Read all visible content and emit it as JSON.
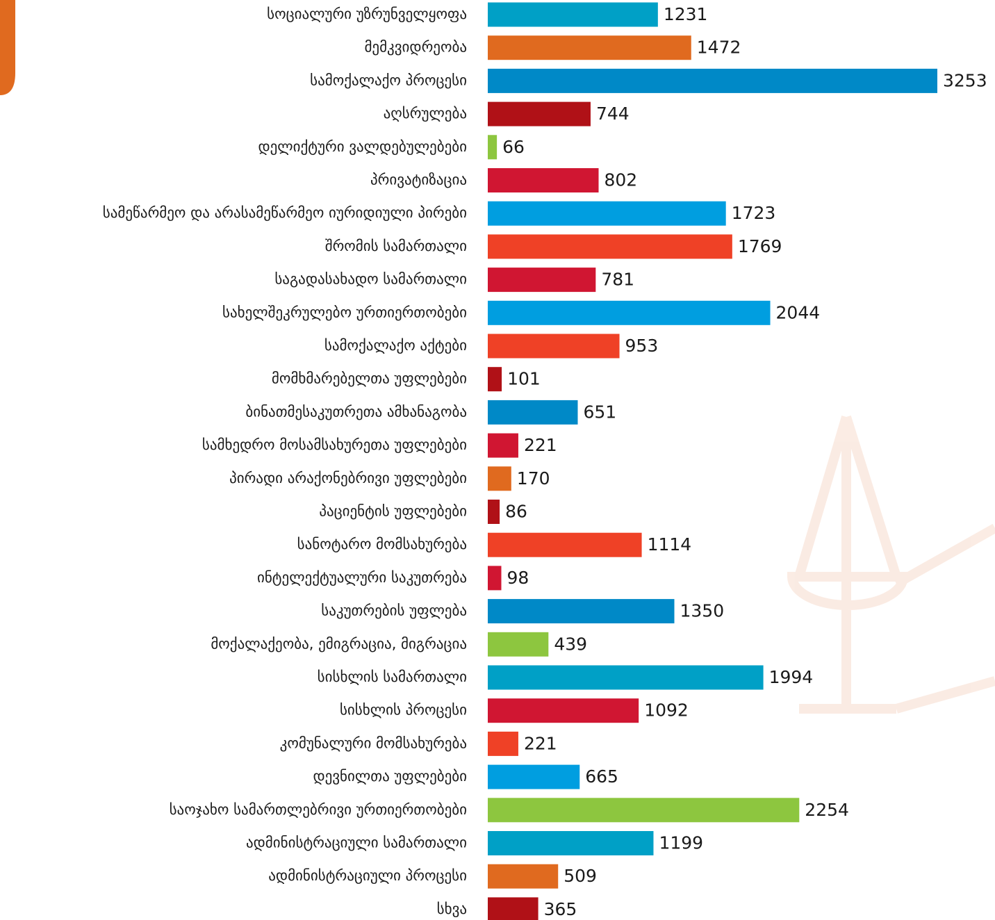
{
  "chart_data": {
    "type": "hbar",
    "categories": [
      "სოციალური უზრუნველყოფა",
      "მემკვიდრეობა",
      "სამოქალაქო პროცესი",
      "აღსრულება",
      "დელიქტური ვალდებულებები",
      "პრივატიზაცია",
      "სამეწარმეო და არასამეწარმეო იურიდიული პირები",
      "შრომის სამართალი",
      "საგადასახადო სამართალი",
      "სახელშეკრულებო ურთიერთობები",
      "სამოქალაქო აქტები",
      "მომხმარებელთა უფლებები",
      "ბინათმესაკუთრეთა ამხანაგობა",
      "სამხედრო მოსამსახურეთა უფლებები",
      "პირადი არაქონებრივი უფლებები",
      "პაციენტის უფლებები",
      "სანოტარო მომსახურება",
      "ინტელექტუალური საკუთრება",
      "საკუთრების უფლება",
      "მოქალაქეობა, ემიგრაცია, მიგრაცია",
      "სისხლის სამართალი",
      "სისხლის პროცესი",
      "კომუნალური მომსახურება",
      "დევნილთა უფლებები",
      "საოჯახო სამართლებრივი ურთიერთობები",
      "ადმინისტრაციული სამართალი",
      "ადმინისტრაციული პროცესი",
      "სხვა"
    ],
    "values": [
      1231,
      1472,
      3253,
      744,
      66,
      802,
      1723,
      1769,
      781,
      2044,
      953,
      101,
      651,
      221,
      170,
      86,
      1114,
      98,
      1350,
      439,
      1994,
      1092,
      221,
      665,
      2254,
      1199,
      509,
      365
    ],
    "colors": [
      "#00a0c6",
      "#e06a1f",
      "#0089c7",
      "#b01117",
      "#8dc63f",
      "#d01632",
      "#009ee0",
      "#ef4126",
      "#d01632",
      "#009ee0",
      "#ef4126",
      "#b01117",
      "#0089c7",
      "#d01632",
      "#e06a1f",
      "#b01117",
      "#ef4126",
      "#d01632",
      "#0089c7",
      "#8dc63f",
      "#00a0c6",
      "#d01632",
      "#ef4126",
      "#009ee0",
      "#8dc63f",
      "#00a0c6",
      "#e06a1f",
      "#b01117"
    ]
  }
}
